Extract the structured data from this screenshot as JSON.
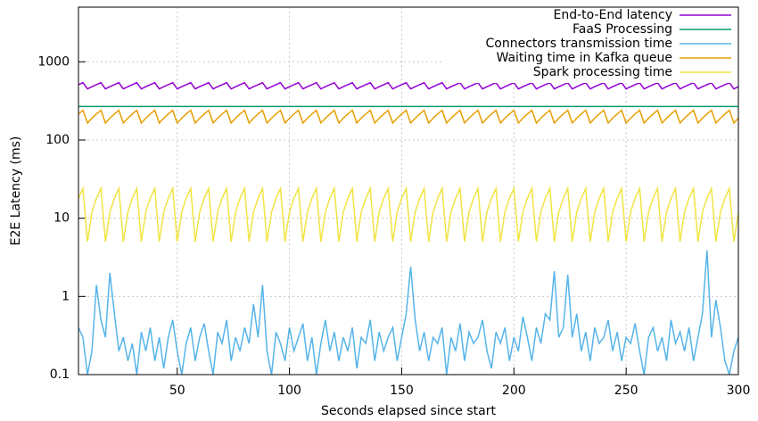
{
  "chart_data": {
    "type": "line",
    "xlabel": "Seconds elapsed since start",
    "ylabel": "E2E Latency (ms)",
    "log_y": true,
    "grid": true,
    "legend": "top right",
    "xlim": [
      6,
      300
    ],
    "ylim": [
      0.1,
      5000
    ],
    "xticks": [
      50,
      100,
      150,
      200,
      250,
      300
    ],
    "yticks": [
      0.1,
      1,
      10,
      100,
      1000
    ],
    "x": [
      6,
      8,
      10,
      12,
      14,
      16,
      18,
      20,
      22,
      24,
      26,
      28,
      30,
      32,
      34,
      36,
      38,
      40,
      42,
      44,
      46,
      48,
      50,
      52,
      54,
      56,
      58,
      60,
      62,
      64,
      66,
      68,
      70,
      72,
      74,
      76,
      78,
      80,
      82,
      84,
      86,
      88,
      90,
      92,
      94,
      96,
      98,
      100,
      102,
      104,
      106,
      108,
      110,
      112,
      114,
      116,
      118,
      120,
      122,
      124,
      126,
      128,
      130,
      132,
      134,
      136,
      138,
      140,
      142,
      144,
      146,
      148,
      150,
      152,
      154,
      156,
      158,
      160,
      162,
      164,
      166,
      168,
      170,
      172,
      174,
      176,
      178,
      180,
      182,
      184,
      186,
      188,
      190,
      192,
      194,
      196,
      198,
      200,
      202,
      204,
      206,
      208,
      210,
      212,
      214,
      216,
      218,
      220,
      222,
      224,
      226,
      228,
      230,
      232,
      234,
      236,
      238,
      240,
      242,
      244,
      246,
      248,
      250,
      252,
      254,
      256,
      258,
      260,
      262,
      264,
      266,
      268,
      270,
      272,
      274,
      276,
      278,
      280,
      282,
      284,
      286,
      288,
      290,
      292,
      294,
      296,
      298,
      300
    ],
    "series": [
      {
        "name": "End-to-End latency",
        "color": "#9400d3",
        "values": [
          510,
          540,
          450,
          480,
          510,
          540,
          450,
          480,
          510,
          540,
          450,
          480,
          510,
          540,
          450,
          480,
          510,
          540,
          450,
          480,
          510,
          540,
          450,
          480,
          510,
          540,
          450,
          480,
          510,
          540,
          450,
          480,
          510,
          540,
          450,
          480,
          510,
          540,
          450,
          480,
          510,
          540,
          450,
          480,
          510,
          540,
          450,
          480,
          510,
          540,
          450,
          480,
          510,
          540,
          450,
          480,
          510,
          540,
          450,
          480,
          510,
          540,
          450,
          480,
          510,
          540,
          450,
          480,
          510,
          540,
          450,
          480,
          510,
          540,
          450,
          480,
          510,
          540,
          450,
          480,
          510,
          540,
          450,
          480,
          510,
          540,
          450,
          480,
          510,
          540,
          450,
          480,
          510,
          540,
          450,
          480,
          510,
          540,
          450,
          480,
          510,
          540,
          450,
          480,
          510,
          540,
          450,
          480,
          510,
          540,
          450,
          480,
          510,
          540,
          450,
          480,
          510,
          540,
          450,
          480,
          510,
          540,
          450,
          480,
          510,
          540,
          450,
          480,
          510,
          540,
          450,
          480,
          510,
          540,
          450,
          480,
          510,
          540,
          450,
          480,
          510,
          540,
          450,
          480,
          510,
          540,
          450,
          480
        ]
      },
      {
        "name": "FaaS Processing",
        "color": "#009e73",
        "values": [
          268,
          268,
          268,
          268,
          268,
          268,
          268,
          268,
          268,
          268,
          268,
          268,
          268,
          268,
          268,
          268,
          268,
          268,
          268,
          268,
          268,
          268,
          268,
          268,
          268,
          268,
          268,
          268,
          268,
          268,
          268,
          268,
          268,
          268,
          268,
          268,
          268,
          268,
          268,
          268,
          268,
          268,
          268,
          268,
          268,
          268,
          268,
          268,
          268,
          268,
          268,
          268,
          268,
          268,
          268,
          268,
          268,
          268,
          268,
          268,
          268,
          268,
          268,
          268,
          268,
          268,
          268,
          268,
          268,
          268,
          268,
          268,
          268,
          268,
          268,
          268,
          268,
          268,
          268,
          268,
          268,
          268,
          268,
          268,
          268,
          268,
          268,
          268,
          268,
          268,
          268,
          268,
          268,
          268,
          268,
          268,
          268,
          268,
          268,
          268,
          268,
          268,
          268,
          268,
          268,
          268,
          268,
          268,
          268,
          268,
          268,
          268,
          268,
          268,
          268,
          268,
          268,
          268,
          268,
          268,
          268,
          268,
          268,
          268,
          268,
          268,
          268,
          268,
          268,
          268,
          268,
          268,
          268,
          268,
          268,
          268,
          268,
          268,
          268,
          268,
          268,
          268,
          268,
          268,
          268,
          268,
          268,
          268
        ]
      },
      {
        "name": "Connectors transmission time",
        "color": "#56b4e9",
        "values": [
          0.4,
          0.3,
          0.1,
          0.2,
          1.4,
          0.5,
          0.3,
          2.0,
          0.6,
          0.2,
          0.3,
          0.15,
          0.25,
          0.1,
          0.35,
          0.2,
          0.4,
          0.15,
          0.3,
          0.12,
          0.3,
          0.5,
          0.2,
          0.1,
          0.25,
          0.4,
          0.15,
          0.3,
          0.45,
          0.2,
          0.1,
          0.35,
          0.25,
          0.5,
          0.15,
          0.3,
          0.2,
          0.4,
          0.25,
          0.8,
          0.3,
          1.4,
          0.2,
          0.1,
          0.35,
          0.25,
          0.15,
          0.4,
          0.2,
          0.3,
          0.45,
          0.15,
          0.3,
          0.1,
          0.25,
          0.5,
          0.2,
          0.35,
          0.15,
          0.3,
          0.2,
          0.4,
          0.12,
          0.3,
          0.25,
          0.5,
          0.15,
          0.35,
          0.2,
          0.3,
          0.4,
          0.15,
          0.3,
          0.6,
          2.4,
          0.5,
          0.2,
          0.35,
          0.15,
          0.3,
          0.25,
          0.4,
          0.1,
          0.3,
          0.2,
          0.45,
          0.15,
          0.35,
          0.25,
          0.3,
          0.5,
          0.2,
          0.12,
          0.35,
          0.25,
          0.4,
          0.15,
          0.3,
          0.2,
          0.55,
          0.3,
          0.15,
          0.4,
          0.25,
          0.6,
          0.5,
          2.1,
          0.3,
          0.4,
          1.9,
          0.3,
          0.6,
          0.2,
          0.35,
          0.15,
          0.4,
          0.25,
          0.3,
          0.5,
          0.2,
          0.35,
          0.15,
          0.3,
          0.25,
          0.45,
          0.2,
          0.1,
          0.3,
          0.4,
          0.2,
          0.3,
          0.15,
          0.5,
          0.25,
          0.35,
          0.2,
          0.4,
          0.15,
          0.3,
          0.6,
          3.9,
          0.3,
          0.9,
          0.4,
          0.15,
          0.1,
          0.2,
          0.3
        ]
      },
      {
        "name": "Waiting time in Kafka queue",
        "color": "#e69f00",
        "values": [
          215,
          240,
          165,
          190,
          215,
          240,
          165,
          190,
          215,
          240,
          165,
          190,
          215,
          240,
          165,
          190,
          215,
          240,
          165,
          190,
          215,
          240,
          165,
          190,
          215,
          240,
          165,
          190,
          215,
          240,
          165,
          190,
          215,
          240,
          165,
          190,
          215,
          240,
          165,
          190,
          215,
          240,
          165,
          190,
          215,
          240,
          165,
          190,
          215,
          240,
          165,
          190,
          215,
          240,
          165,
          190,
          215,
          240,
          165,
          190,
          215,
          240,
          165,
          190,
          215,
          240,
          165,
          190,
          215,
          240,
          165,
          190,
          215,
          240,
          165,
          190,
          215,
          240,
          165,
          190,
          215,
          240,
          165,
          190,
          215,
          240,
          165,
          190,
          215,
          240,
          165,
          190,
          215,
          240,
          165,
          190,
          215,
          240,
          165,
          190,
          215,
          240,
          165,
          190,
          215,
          240,
          165,
          190,
          215,
          240,
          165,
          190,
          215,
          240,
          165,
          190,
          215,
          240,
          165,
          190,
          215,
          240,
          165,
          190,
          215,
          240,
          165,
          190,
          215,
          240,
          165,
          190,
          215,
          240,
          165,
          190,
          215,
          240,
          165,
          190,
          215,
          240,
          165,
          190,
          215,
          240,
          165,
          190
        ]
      },
      {
        "name": "Spark processing time",
        "color": "#f0e442",
        "values": [
          18,
          24,
          5,
          12,
          18,
          24,
          5,
          12,
          18,
          24,
          5,
          12,
          18,
          24,
          5,
          12,
          18,
          24,
          5,
          12,
          18,
          24,
          5,
          12,
          18,
          24,
          5,
          12,
          18,
          24,
          5,
          12,
          18,
          24,
          5,
          12,
          18,
          24,
          5,
          12,
          18,
          24,
          5,
          12,
          18,
          24,
          5,
          12,
          18,
          24,
          5,
          12,
          18,
          24,
          5,
          12,
          18,
          24,
          5,
          12,
          18,
          24,
          5,
          12,
          18,
          24,
          5,
          12,
          18,
          24,
          5,
          12,
          18,
          24,
          5,
          12,
          18,
          24,
          5,
          12,
          18,
          24,
          5,
          12,
          18,
          24,
          5,
          12,
          18,
          24,
          5,
          12,
          18,
          24,
          5,
          12,
          18,
          24,
          5,
          12,
          18,
          24,
          5,
          12,
          18,
          24,
          5,
          12,
          18,
          24,
          5,
          12,
          18,
          24,
          5,
          12,
          18,
          24,
          5,
          12,
          18,
          24,
          5,
          12,
          18,
          24,
          5,
          12,
          18,
          24,
          5,
          12,
          18,
          24,
          5,
          12,
          18,
          24,
          5,
          12,
          18,
          24,
          5,
          12,
          18,
          24,
          5,
          12
        ]
      }
    ]
  }
}
